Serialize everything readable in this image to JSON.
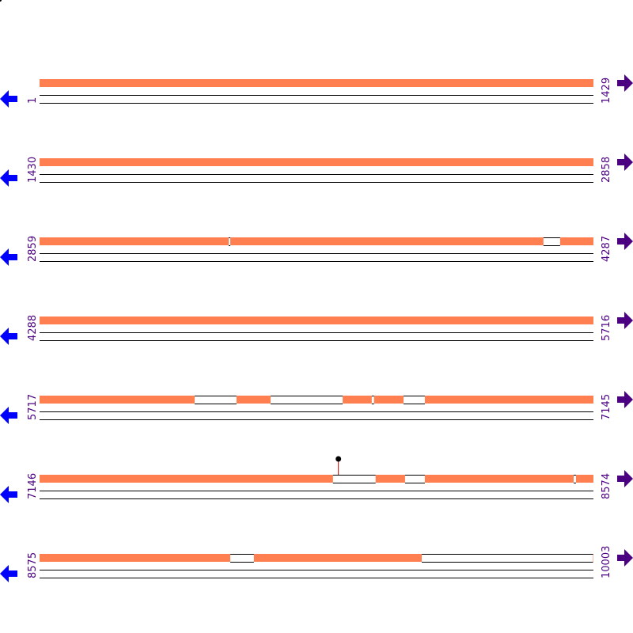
{
  "colors": {
    "feature": "#ff7f50",
    "gap": "#ffffff",
    "label": "#4b0082",
    "reverse_arrow": "#0000ff",
    "forward_arrow": "#4b0082",
    "pin_stem": "#cc0000",
    "pin_head": "#000000"
  },
  "icons": {
    "left": "arrow-left-icon",
    "right": "arrow-right-icon",
    "marker": "pin-icon"
  },
  "rows": [
    {
      "start": 1,
      "end": 1429,
      "start_label": "1",
      "end_label": "1429",
      "gaps": [],
      "pins": []
    },
    {
      "start": 1430,
      "end": 2858,
      "start_label": "1430",
      "end_label": "2858",
      "gaps": [],
      "pins": []
    },
    {
      "start": 2859,
      "end": 4287,
      "start_label": "2859",
      "end_label": "4287",
      "gaps": [
        [
          3347,
          3351
        ],
        [
          4159,
          4202
        ]
      ],
      "pins": []
    },
    {
      "start": 4288,
      "end": 5716,
      "start_label": "4288",
      "end_label": "5716",
      "gaps": [],
      "pins": []
    },
    {
      "start": 5717,
      "end": 7145,
      "start_label": "5717",
      "end_label": "7145",
      "gaps": [
        [
          6117,
          6225
        ],
        [
          6313,
          6499
        ],
        [
          6574,
          6580
        ],
        [
          6656,
          6711
        ]
      ],
      "pins": []
    },
    {
      "start": 7146,
      "end": 8574,
      "start_label": "7146",
      "end_label": "8574",
      "gaps": [
        [
          7903,
          8013
        ],
        [
          8089,
          8140
        ],
        [
          8524,
          8530
        ]
      ],
      "pins": [
        7917
      ]
    },
    {
      "start": 8575,
      "end": 10003,
      "start_label": "8575",
      "end_label": "10003",
      "gaps": [
        [
          9067,
          9128
        ],
        [
          9561,
          10003
        ]
      ],
      "pins": []
    }
  ]
}
